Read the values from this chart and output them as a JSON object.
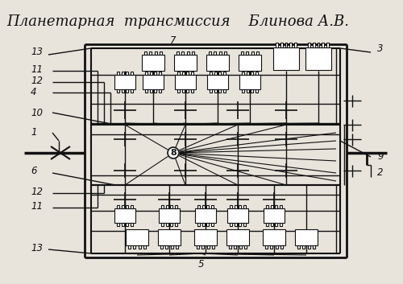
{
  "title": "Планетарная  трансмиссия    Блинова А.В.",
  "bg_color": "#e8e4dc",
  "line_color": "#111111",
  "title_fontsize": 13,
  "fig_width": 5.0,
  "fig_height": 3.53,
  "dpi": 100
}
